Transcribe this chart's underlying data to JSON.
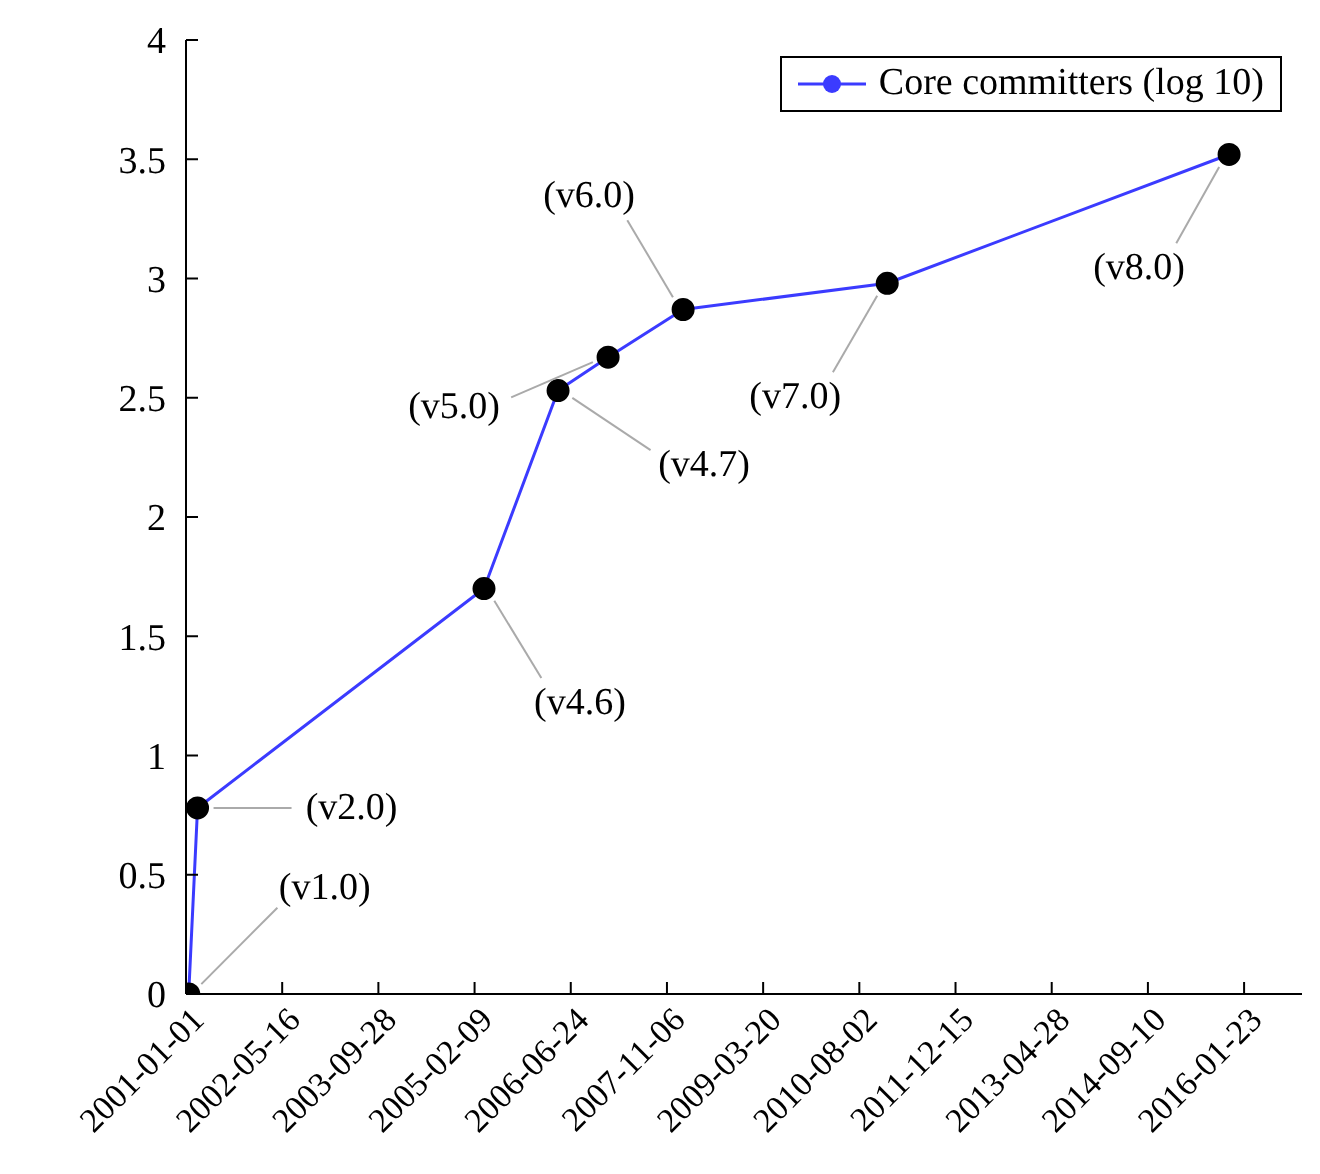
{
  "chart_data": {
    "type": "line",
    "x": [
      "2001-01-15",
      "2001-03-02",
      "2005-03-30",
      "2006-04-19",
      "2007-01-04",
      "2008-01-29",
      "2010-12-25",
      "2015-11-06"
    ],
    "series": [
      {
        "name": "Core committers (log 10)",
        "color": "#3b3bff",
        "values": [
          0,
          0.78,
          1.7,
          2.53,
          2.67,
          2.87,
          2.98,
          3.52
        ]
      }
    ],
    "xlim": [
      "2001-01-01",
      "2016-11-19"
    ],
    "xticks": [
      "2001-01-01",
      "2002-05-16",
      "2003-09-28",
      "2005-02-09",
      "2006-06-24",
      "2007-11-06",
      "2009-03-20",
      "2010-08-02",
      "2011-12-15",
      "2013-04-28",
      "2014-09-10",
      "2016-01-23"
    ],
    "ylim": [
      0,
      4
    ],
    "yticks": [
      0,
      0.5,
      1,
      1.5,
      2,
      2.5,
      3,
      3.5,
      4
    ],
    "grid": false,
    "legend": "top right",
    "marker": "circle",
    "line_style": "solid",
    "annotations": [
      {
        "text": "(v1.0)",
        "x": "2001-01-15",
        "y": 0
      },
      {
        "text": "(v2.0)",
        "x": "2001-03-02",
        "y": 0.78
      },
      {
        "text": "(v4.6)",
        "x": "2005-03-30",
        "y": 1.7
      },
      {
        "text": "(v4.7)",
        "x": "2006-04-19",
        "y": 2.53
      },
      {
        "text": "(v5.0)",
        "x": "2007-01-04",
        "y": 2.67
      },
      {
        "text": "(v6.0)",
        "x": "2008-01-29",
        "y": 2.87
      },
      {
        "text": "(v7.0)",
        "x": "2010-12-25",
        "y": 2.98
      },
      {
        "text": "(v8.0)",
        "x": "2015-11-06",
        "y": 3.52
      }
    ]
  }
}
